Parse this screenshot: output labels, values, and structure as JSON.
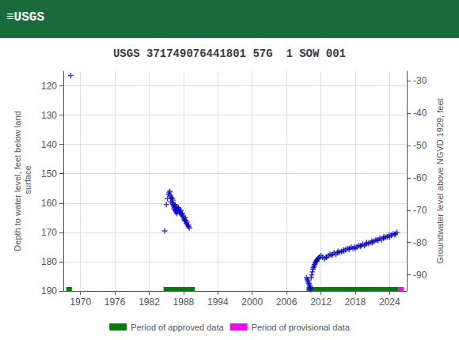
{
  "chart_data": {
    "type": "scatter",
    "title": "USGS 371749076441801 57G  1 SOW 001",
    "header": {
      "text": "≡USGS",
      "color": "#1a6b3c"
    },
    "ylabel": "Depth to water level, feet below land\n surface",
    "y2label": "Groundwater level above NGVD 1929, feet",
    "xlim": [
      1967,
      2027
    ],
    "xticks": [
      1970,
      1976,
      1982,
      1988,
      1994,
      2000,
      2006,
      2012,
      2018,
      2024
    ],
    "ylim": [
      190,
      115
    ],
    "yticks": [
      120,
      130,
      140,
      150,
      160,
      170,
      180,
      190
    ],
    "y2lim": [
      -95,
      -27
    ],
    "y2ticks": [
      -30,
      -40,
      -50,
      -60,
      -70,
      -80,
      -90
    ],
    "grid": true,
    "legend": "bottom",
    "series": [
      {
        "type": "scatter",
        "marker": "plus",
        "color": "#0000cc",
        "x": [
          1968.3
        ],
        "values": [
          116.5
        ]
      },
      {
        "type": "scatter",
        "marker": "plus",
        "color": "#0000cc",
        "x": [
          1984.7,
          1985.0,
          1985.2,
          1985.4,
          1985.5,
          1985.6,
          1985.7,
          1985.8,
          1985.9,
          1986.0,
          1986.1,
          1986.15,
          1986.2,
          1986.25,
          1986.3,
          1986.35,
          1986.4,
          1986.45,
          1986.5,
          1986.55,
          1986.6,
          1986.65,
          1986.7,
          1986.75,
          1986.8,
          1986.85,
          1986.9,
          1987.0,
          1987.1,
          1987.2,
          1987.3,
          1987.4,
          1987.5,
          1987.6,
          1987.7,
          1987.8,
          1987.9,
          1988.0,
          1988.1,
          1988.2,
          1988.3,
          1988.4,
          1988.5,
          1988.6,
          1988.7,
          1988.8,
          1988.9,
          1989.0
        ],
        "values": [
          169.5,
          160.5,
          158.5,
          157.0,
          156.5,
          156.0,
          157.5,
          159.5,
          158.0,
          158.5,
          160.0,
          159.0,
          160.5,
          161.0,
          160.5,
          162.0,
          161.5,
          161.0,
          160.5,
          161.0,
          162.5,
          163.0,
          162.5,
          161.5,
          163.5,
          162.0,
          163.0,
          162.5,
          161.5,
          162.0,
          163.0,
          163.5,
          162.5,
          163.5,
          164.0,
          163.5,
          164.5,
          165.0,
          165.5,
          166.0,
          165.0,
          166.0,
          167.0,
          166.5,
          167.5,
          167.5,
          168.0,
          168.5
        ]
      },
      {
        "type": "scatter",
        "marker": "plus",
        "color": "#0000cc",
        "x": [
          2009.5,
          2009.6,
          2009.7,
          2009.8,
          2009.9,
          2010.0,
          2010.1,
          2010.15,
          2010.2,
          2010.3,
          2010.4,
          2010.5,
          2010.6,
          2010.7,
          2010.8,
          2010.9,
          2011.0,
          2011.1,
          2011.2,
          2011.3,
          2011.4,
          2011.5,
          2011.6,
          2011.7,
          2012.0,
          2012.3,
          2012.6,
          2012.9,
          2013.0,
          2013.3,
          2013.6,
          2013.9,
          2014.0,
          2014.3,
          2014.6,
          2014.9,
          2015.0,
          2015.3,
          2015.6,
          2015.9,
          2016.0,
          2016.3,
          2016.6,
          2016.9,
          2017.0,
          2017.3,
          2017.6,
          2017.9,
          2018.0,
          2018.3,
          2018.6,
          2018.9,
          2019.0,
          2019.3,
          2019.6,
          2019.9,
          2020.0,
          2020.3,
          2020.6,
          2020.9,
          2021.0,
          2021.3,
          2021.6,
          2021.9,
          2022.0,
          2022.3,
          2022.6,
          2022.9,
          2023.0,
          2023.3,
          2023.6,
          2023.9,
          2024.0,
          2024.3,
          2024.6,
          2024.9,
          2025.0,
          2025.3
        ],
        "values": [
          185.5,
          186.0,
          186.5,
          187.0,
          187.5,
          188.0,
          188.5,
          189.0,
          189.5,
          185.5,
          184.5,
          183.5,
          182.5,
          182.0,
          181.5,
          181.0,
          180.5,
          180.0,
          179.5,
          179.8,
          179.3,
          179.0,
          178.8,
          178.5,
          178.0,
          178.5,
          179.0,
          178.5,
          178.5,
          178.0,
          177.5,
          177.8,
          177.5,
          177.0,
          177.5,
          177.0,
          176.5,
          176.8,
          176.5,
          176.0,
          176.5,
          176.0,
          175.5,
          175.8,
          175.5,
          175.0,
          175.5,
          175.0,
          175.5,
          175.0,
          174.5,
          174.8,
          174.5,
          174.0,
          174.5,
          174.0,
          173.5,
          173.8,
          173.5,
          173.0,
          173.5,
          173.0,
          172.5,
          172.8,
          172.5,
          172.0,
          172.5,
          172.0,
          171.5,
          171.8,
          171.5,
          171.0,
          171.5,
          171.0,
          170.5,
          170.8,
          170.5,
          170.0
        ]
      },
      {
        "type": "period",
        "name": "Period of approved data",
        "color": "#008000",
        "periods": [
          [
            1967.5,
            1968.5
          ],
          [
            1984.5,
            1990.0
          ],
          [
            2009.5,
            2025.5
          ]
        ]
      },
      {
        "type": "period",
        "name": "Period of provisional data",
        "color": "#ff00ff",
        "periods": [
          [
            2025.5,
            2026.5
          ]
        ]
      }
    ]
  }
}
